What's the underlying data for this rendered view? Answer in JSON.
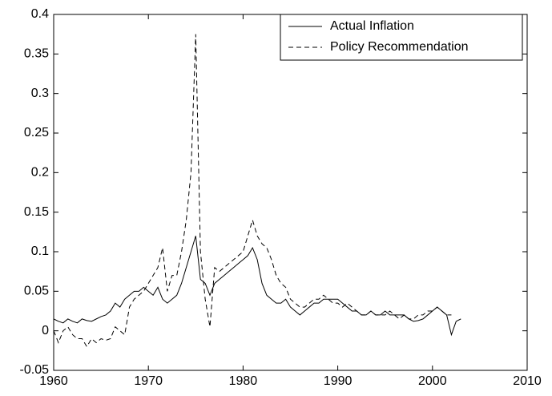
{
  "chart_data": {
    "type": "line",
    "x": [
      1960,
      1960.5,
      1961,
      1961.5,
      1962,
      1962.5,
      1963,
      1963.5,
      1964,
      1964.5,
      1965,
      1965.5,
      1966,
      1966.5,
      1967,
      1967.5,
      1968,
      1968.5,
      1969,
      1969.5,
      1970,
      1970.5,
      1971,
      1971.5,
      1972,
      1972.5,
      1973,
      1973.5,
      1974,
      1974.5,
      1975,
      1975.5,
      1976,
      1976.5,
      1977,
      1977.5,
      1978,
      1978.5,
      1979,
      1979.5,
      1980,
      1980.5,
      1981,
      1981.5,
      1982,
      1982.5,
      1983,
      1983.5,
      1984,
      1984.5,
      1985,
      1985.5,
      1986,
      1986.5,
      1987,
      1987.5,
      1988,
      1988.5,
      1989,
      1989.5,
      1990,
      1990.5,
      1991,
      1991.5,
      1992,
      1992.5,
      1993,
      1993.5,
      1994,
      1994.5,
      1995,
      1995.5,
      1996,
      1996.5,
      1997,
      1997.5,
      1998,
      1998.5,
      1999,
      1999.5,
      2000,
      2000.5,
      2001,
      2001.5,
      2002,
      2002.5,
      2003
    ],
    "series": [
      {
        "name": "Actual Inflation",
        "color": "#000000",
        "dash": false,
        "values": [
          0.015,
          0.012,
          0.01,
          0.015,
          0.012,
          0.01,
          0.015,
          0.013,
          0.012,
          0.015,
          0.018,
          0.02,
          0.025,
          0.035,
          0.03,
          0.04,
          0.045,
          0.05,
          0.05,
          0.055,
          0.05,
          0.045,
          0.055,
          0.04,
          0.035,
          0.04,
          0.045,
          0.06,
          0.08,
          0.1,
          0.12,
          0.065,
          0.06,
          0.045,
          0.06,
          0.065,
          0.07,
          0.075,
          0.08,
          0.085,
          0.09,
          0.095,
          0.105,
          0.09,
          0.06,
          0.045,
          0.04,
          0.035,
          0.035,
          0.04,
          0.03,
          0.025,
          0.02,
          0.025,
          0.03,
          0.035,
          0.035,
          0.04,
          0.04,
          0.04,
          0.04,
          0.035,
          0.03,
          0.025,
          0.025,
          0.02,
          0.02,
          0.025,
          0.02,
          0.02,
          0.025,
          0.02,
          0.02,
          0.02,
          0.02,
          0.015,
          0.012,
          0.013,
          0.015,
          0.02,
          0.025,
          0.03,
          0.025,
          0.02,
          -0.005,
          0.012,
          0.015
        ]
      },
      {
        "name": "Policy Recommendation",
        "color": "#000000",
        "dash": true,
        "values": [
          0.0,
          -0.015,
          0.0,
          0.005,
          -0.005,
          -0.01,
          -0.01,
          -0.02,
          -0.01,
          -0.015,
          -0.01,
          -0.012,
          -0.01,
          0.005,
          0.0,
          -0.005,
          0.03,
          0.04,
          0.045,
          0.05,
          0.06,
          0.07,
          0.08,
          0.105,
          0.05,
          0.07,
          0.07,
          0.1,
          0.14,
          0.2,
          0.375,
          0.1,
          0.04,
          0.005,
          0.08,
          0.075,
          0.08,
          0.085,
          0.09,
          0.095,
          0.1,
          0.12,
          0.14,
          0.12,
          0.11,
          0.105,
          0.09,
          0.07,
          0.06,
          0.055,
          0.04,
          0.035,
          0.03,
          0.03,
          0.035,
          0.04,
          0.04,
          0.045,
          0.04,
          0.035,
          0.035,
          0.03,
          0.035,
          0.03,
          0.025,
          0.02,
          0.02,
          0.025,
          0.02,
          0.02,
          0.02,
          0.025,
          0.02,
          0.015,
          0.02,
          0.015,
          0.015,
          0.02,
          0.02,
          0.025,
          0.025,
          0.03,
          0.025,
          0.02,
          0.02,
          null,
          null
        ]
      }
    ],
    "xlim": [
      1960,
      2010
    ],
    "xticks": [
      1960,
      1970,
      1980,
      1990,
      2000,
      2010
    ],
    "ylim": [
      -0.05,
      0.4
    ],
    "yticks": [
      -0.05,
      0,
      0.05,
      0.1,
      0.15,
      0.2,
      0.25,
      0.3,
      0.35,
      0.4
    ],
    "legend": "top-right"
  }
}
